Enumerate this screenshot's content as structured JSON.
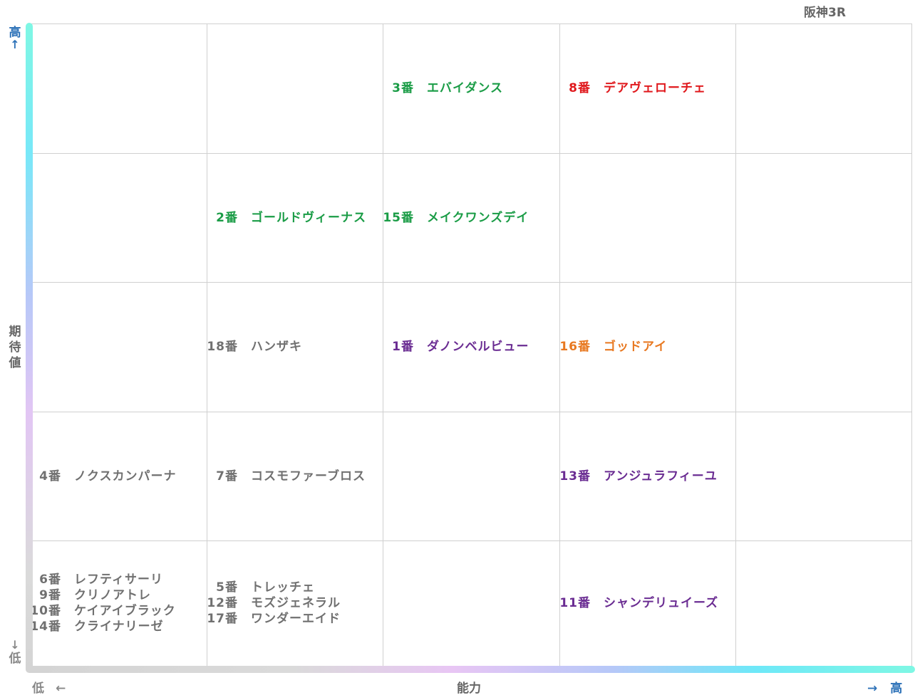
{
  "race": "阪神3R",
  "axes": {
    "y_title": "期待値",
    "y_high": "高",
    "y_low": "低",
    "y_high_arrow": "↑",
    "y_low_arrow": "↓",
    "x_title": "能力",
    "x_low": "低",
    "x_high": "高",
    "x_low_arrow": "←",
    "x_high_arrow": "→"
  },
  "colors": {
    "green": "#1a9c46",
    "red": "#e0181c",
    "purple": "#6a2c92",
    "orange": "#e87820",
    "gray": "#707070"
  },
  "chart_data": {
    "type": "table",
    "columns": 5,
    "rows": 5,
    "x_axis": "能力",
    "y_axis": "期待値",
    "cells": [
      {
        "col": 2,
        "row": 0,
        "entries": [
          {
            "num": "3番",
            "name": "エバイダンス",
            "color": "green"
          }
        ]
      },
      {
        "col": 3,
        "row": 0,
        "entries": [
          {
            "num": "8番",
            "name": "デアヴェローチェ",
            "color": "red"
          }
        ]
      },
      {
        "col": 1,
        "row": 1,
        "entries": [
          {
            "num": "2番",
            "name": "ゴールドヴィーナス",
            "color": "green"
          }
        ]
      },
      {
        "col": 2,
        "row": 1,
        "entries": [
          {
            "num": "15番",
            "name": "メイクワンズデイ",
            "color": "green"
          }
        ]
      },
      {
        "col": 1,
        "row": 2,
        "entries": [
          {
            "num": "18番",
            "name": "ハンザキ",
            "color": "gray"
          }
        ]
      },
      {
        "col": 2,
        "row": 2,
        "entries": [
          {
            "num": "1番",
            "name": "ダノンベルビュー",
            "color": "purple"
          }
        ]
      },
      {
        "col": 3,
        "row": 2,
        "entries": [
          {
            "num": "16番",
            "name": "ゴッドアイ",
            "color": "orange"
          }
        ]
      },
      {
        "col": 0,
        "row": 3,
        "entries": [
          {
            "num": "4番",
            "name": "ノクスカンパーナ",
            "color": "gray"
          }
        ]
      },
      {
        "col": 1,
        "row": 3,
        "entries": [
          {
            "num": "7番",
            "name": "コスモファーブロス",
            "color": "gray"
          }
        ]
      },
      {
        "col": 3,
        "row": 3,
        "entries": [
          {
            "num": "13番",
            "name": "アンジュラフィーユ",
            "color": "purple"
          }
        ]
      },
      {
        "col": 0,
        "row": 4,
        "entries": [
          {
            "num": "6番",
            "name": "レフティサーリ",
            "color": "gray"
          },
          {
            "num": "9番",
            "name": "クリノアトレ",
            "color": "gray"
          },
          {
            "num": "10番",
            "name": "ケイアイブラック",
            "color": "gray"
          },
          {
            "num": "14番",
            "name": "クライナリーゼ",
            "color": "gray"
          }
        ]
      },
      {
        "col": 1,
        "row": 4,
        "entries": [
          {
            "num": "5番",
            "name": "トレッチェ",
            "color": "gray"
          },
          {
            "num": "12番",
            "name": "モズジェネラル",
            "color": "gray"
          },
          {
            "num": "17番",
            "name": "ワンダーエイド",
            "color": "gray"
          }
        ]
      },
      {
        "col": 3,
        "row": 4,
        "entries": [
          {
            "num": "11番",
            "name": "シャンデリュイーズ",
            "color": "purple"
          }
        ]
      }
    ]
  }
}
